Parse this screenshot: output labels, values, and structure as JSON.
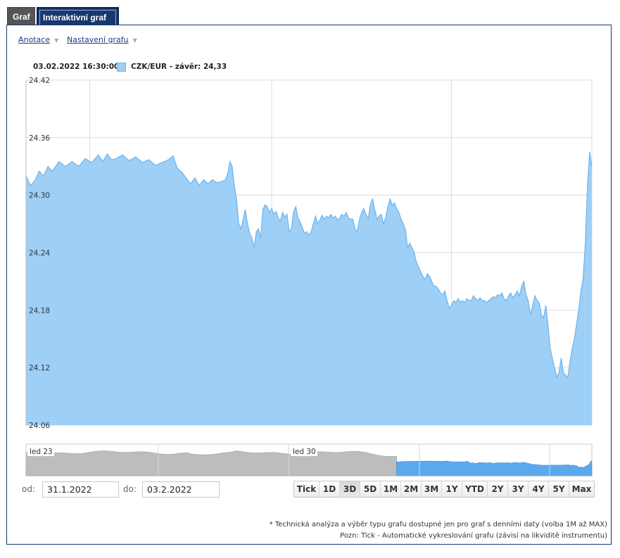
{
  "tabs": [
    {
      "label": "Graf"
    },
    {
      "label": "Interaktivní graf"
    }
  ],
  "toolbar": {
    "annotations_label": "Anotace",
    "settings_label": "Nastavení grafu"
  },
  "info": {
    "datetime": "03.02.2022 16:30:00",
    "legend_label": "CZK/EUR - závěr: 24,33"
  },
  "colors": {
    "area_fill": "#9dcff7",
    "area_line": "#6fb4ea",
    "nav_history": "#bdbdbd",
    "nav_selected": "#5aa9ef"
  },
  "chart_data": {
    "type": "area",
    "series": [
      {
        "name": "CZK/EUR",
        "close": 24.33,
        "points": [
          [
            0,
            24.32
          ],
          [
            2,
            24.31
          ],
          [
            4,
            24.315
          ],
          [
            6,
            24.325
          ],
          [
            8,
            24.32
          ],
          [
            10,
            24.33
          ],
          [
            12,
            24.325
          ],
          [
            15,
            24.335
          ],
          [
            18,
            24.33
          ],
          [
            21,
            24.335
          ],
          [
            24,
            24.33
          ],
          [
            27,
            24.338
          ],
          [
            30,
            24.334
          ],
          [
            33,
            24.342
          ],
          [
            35,
            24.335
          ],
          [
            37,
            24.343
          ],
          [
            39,
            24.337
          ],
          [
            41,
            24.338
          ],
          [
            44,
            24.342
          ],
          [
            47,
            24.336
          ],
          [
            50,
            24.34
          ],
          [
            53,
            24.334
          ],
          [
            56,
            24.337
          ],
          [
            59,
            24.331
          ],
          [
            62,
            24.334
          ],
          [
            65,
            24.337
          ],
          [
            67,
            24.341
          ],
          [
            69,
            24.328
          ],
          [
            71,
            24.324
          ],
          [
            73,
            24.318
          ],
          [
            75,
            24.312
          ],
          [
            77,
            24.318
          ],
          [
            79,
            24.31
          ],
          [
            81,
            24.316
          ],
          [
            83,
            24.312
          ],
          [
            85,
            24.316
          ],
          [
            87,
            24.313
          ],
          [
            89,
            24.314
          ],
          [
            91,
            24.316
          ],
          [
            92,
            24.323
          ],
          [
            93,
            24.335
          ],
          [
            94,
            24.33
          ],
          [
            95,
            24.31
          ],
          [
            96,
            24.295
          ],
          [
            97,
            24.27
          ],
          [
            98,
            24.265
          ],
          [
            99,
            24.275
          ],
          [
            100,
            24.285
          ],
          [
            101,
            24.27
          ],
          [
            102,
            24.26
          ],
          [
            103,
            24.255
          ],
          [
            104,
            24.245
          ],
          [
            105,
            24.262
          ],
          [
            106,
            24.265
          ],
          [
            107,
            24.255
          ],
          [
            108,
            24.285
          ],
          [
            109,
            24.29
          ],
          [
            110,
            24.288
          ],
          [
            111,
            24.282
          ],
          [
            112,
            24.286
          ],
          [
            113,
            24.28
          ],
          [
            114,
            24.283
          ],
          [
            115,
            24.276
          ],
          [
            116,
            24.273
          ],
          [
            117,
            24.282
          ],
          [
            118,
            24.277
          ],
          [
            119,
            24.28
          ],
          [
            120,
            24.262
          ],
          [
            121,
            24.265
          ],
          [
            122,
            24.283
          ],
          [
            123,
            24.288
          ],
          [
            124,
            24.276
          ],
          [
            125,
            24.272
          ],
          [
            126,
            24.266
          ],
          [
            127,
            24.26
          ],
          [
            128,
            24.262
          ],
          [
            129,
            24.258
          ],
          [
            130,
            24.262
          ],
          [
            131,
            24.27
          ],
          [
            132,
            24.278
          ],
          [
            133,
            24.27
          ],
          [
            134,
            24.274
          ],
          [
            135,
            24.279
          ],
          [
            136,
            24.275
          ],
          [
            137,
            24.278
          ],
          [
            138,
            24.276
          ],
          [
            139,
            24.28
          ],
          [
            140,
            24.276
          ],
          [
            141,
            24.278
          ],
          [
            142,
            24.274
          ],
          [
            143,
            24.276
          ],
          [
            144,
            24.28
          ],
          [
            145,
            24.278
          ],
          [
            146,
            24.282
          ],
          [
            147,
            24.276
          ],
          [
            148,
            24.275
          ],
          [
            149,
            24.275
          ],
          [
            150,
            24.265
          ],
          [
            151,
            24.262
          ],
          [
            152,
            24.274
          ],
          [
            153,
            24.282
          ],
          [
            154,
            24.286
          ],
          [
            155,
            24.28
          ],
          [
            156,
            24.275
          ],
          [
            157,
            24.29
          ],
          [
            158,
            24.296
          ],
          [
            159,
            24.285
          ],
          [
            160,
            24.275
          ],
          [
            161,
            24.278
          ],
          [
            162,
            24.28
          ],
          [
            163,
            24.27
          ],
          [
            164,
            24.277
          ],
          [
            165,
            24.288
          ],
          [
            166,
            24.296
          ],
          [
            167,
            24.289
          ],
          [
            168,
            24.292
          ],
          [
            169,
            24.286
          ],
          [
            170,
            24.282
          ],
          [
            171,
            24.275
          ],
          [
            172,
            24.27
          ],
          [
            173,
            24.264
          ],
          [
            174,
            24.245
          ],
          [
            175,
            24.25
          ],
          [
            176,
            24.245
          ],
          [
            177,
            24.24
          ],
          [
            178,
            24.23
          ],
          [
            179,
            24.225
          ],
          [
            180,
            24.22
          ],
          [
            181,
            24.215
          ],
          [
            182,
            24.212
          ],
          [
            183,
            24.218
          ],
          [
            184,
            24.215
          ],
          [
            185,
            24.21
          ],
          [
            186,
            24.205
          ],
          [
            187,
            24.205
          ],
          [
            188,
            24.202
          ],
          [
            189,
            24.198
          ],
          [
            190,
            24.196
          ],
          [
            191,
            24.2
          ],
          [
            192,
            24.19
          ],
          [
            193,
            24.182
          ],
          [
            194,
            24.185
          ],
          [
            195,
            24.19
          ],
          [
            196,
            24.188
          ],
          [
            197,
            24.192
          ],
          [
            198,
            24.188
          ],
          [
            199,
            24.19
          ],
          [
            200,
            24.188
          ],
          [
            201,
            24.192
          ],
          [
            202,
            24.19
          ],
          [
            203,
            24.19
          ],
          [
            204,
            24.195
          ],
          [
            205,
            24.192
          ],
          [
            206,
            24.19
          ],
          [
            207,
            24.193
          ],
          [
            208,
            24.19
          ],
          [
            209,
            24.19
          ],
          [
            210,
            24.188
          ],
          [
            211,
            24.19
          ],
          [
            212,
            24.192
          ],
          [
            213,
            24.194
          ],
          [
            214,
            24.193
          ],
          [
            215,
            24.196
          ],
          [
            216,
            24.195
          ],
          [
            217,
            24.198
          ],
          [
            218,
            24.192
          ],
          [
            219,
            24.19
          ],
          [
            220,
            24.195
          ],
          [
            221,
            24.198
          ],
          [
            222,
            24.193
          ],
          [
            223,
            24.196
          ],
          [
            224,
            24.2
          ],
          [
            225,
            24.195
          ],
          [
            226,
            24.205
          ],
          [
            227,
            24.21
          ],
          [
            228,
            24.196
          ],
          [
            229,
            24.19
          ],
          [
            230,
            24.175
          ],
          [
            231,
            24.185
          ],
          [
            232,
            24.195
          ],
          [
            233,
            24.19
          ],
          [
            234,
            24.188
          ],
          [
            235,
            24.175
          ],
          [
            236,
            24.172
          ],
          [
            237,
            24.185
          ],
          [
            238,
            24.165
          ],
          [
            239,
            24.14
          ],
          [
            240,
            24.13
          ],
          [
            241,
            24.12
          ],
          [
            242,
            24.11
          ],
          [
            243,
            24.115
          ],
          [
            244,
            24.13
          ],
          [
            245,
            24.115
          ],
          [
            246,
            24.112
          ],
          [
            247,
            24.11
          ],
          [
            248,
            24.125
          ],
          [
            249,
            24.14
          ],
          [
            250,
            24.15
          ],
          [
            251,
            24.165
          ],
          [
            252,
            24.18
          ],
          [
            253,
            24.2
          ],
          [
            254,
            24.212
          ],
          [
            255,
            24.25
          ],
          [
            256,
            24.31
          ],
          [
            257,
            24.345
          ],
          [
            258,
            24.33
          ]
        ]
      }
    ],
    "ylim": [
      24.06,
      24.42
    ],
    "yticks": [
      "24.42",
      "24.36",
      "24.30",
      "24.24",
      "24.18",
      "24.12",
      "24.06"
    ],
    "yticks_values": [
      24.42,
      24.36,
      24.3,
      24.24,
      24.18,
      24.12,
      24.06
    ],
    "xlim": [
      0,
      258
    ],
    "x_gridlines": [
      29,
      112,
      194
    ],
    "grid": true,
    "navigator": {
      "labels": [
        "led 23",
        "led 30"
      ],
      "selection_start_fraction": 0.655
    }
  },
  "range": {
    "from_label": "od:",
    "from_value": "31.1.2022",
    "to_label": "do:",
    "to_value": "03.2.2022",
    "buttons": [
      "Tick",
      "1D",
      "3D",
      "5D",
      "1M",
      "2M",
      "3M",
      "1Y",
      "YTD",
      "2Y",
      "3Y",
      "4Y",
      "5Y",
      "Max"
    ],
    "active": "3D"
  },
  "notes": {
    "line1": "* Technická analýza a výběr typu grafu dostupné jen pro graf s denními daty (volba 1M až MAX)",
    "line2": "Pozn: Tick - Automatické vykreslování grafu (závisí na likviditě instrumentu)"
  }
}
